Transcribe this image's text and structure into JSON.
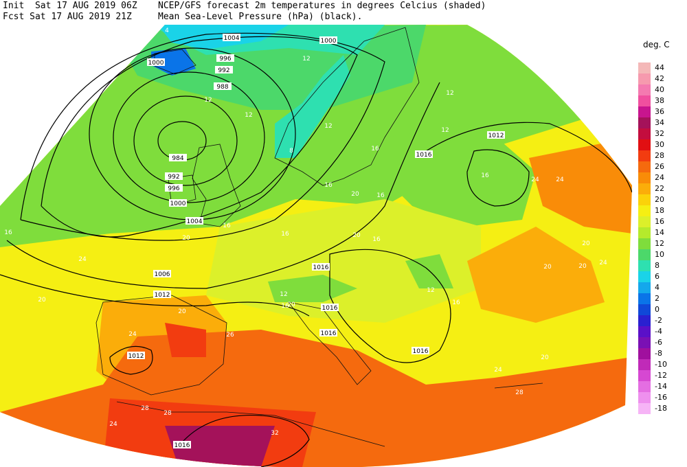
{
  "header": {
    "init_line": "Init  Sat 17 AUG 2019 06Z",
    "fcst_line": "Fcst Sat 17 AUG 2019 21Z",
    "desc_line1": "NCEP/GFS forecast 2m temperatures in degrees Celcius (shaded)",
    "desc_line2": "Mean Sea-Level Pressure (hPa) (black)."
  },
  "legend": {
    "title": "deg. C",
    "levels": [
      {
        "label": "44",
        "color": "#f4b8b8"
      },
      {
        "label": "42",
        "color": "#f69aae"
      },
      {
        "label": "40",
        "color": "#f47ab0"
      },
      {
        "label": "38",
        "color": "#f04f9f"
      },
      {
        "label": "36",
        "color": "#c8158e"
      },
      {
        "label": "34",
        "color": "#a4125a"
      },
      {
        "label": "32",
        "color": "#c30d3e"
      },
      {
        "label": "30",
        "color": "#e10f12"
      },
      {
        "label": "28",
        "color": "#f23c10"
      },
      {
        "label": "26",
        "color": "#f56a0e"
      },
      {
        "label": "24",
        "color": "#f98c08"
      },
      {
        "label": "22",
        "color": "#fbad0a"
      },
      {
        "label": "20",
        "color": "#fbd20a"
      },
      {
        "label": "18",
        "color": "#f5ef13"
      },
      {
        "label": "16",
        "color": "#dcf02a"
      },
      {
        "label": "14",
        "color": "#b5ea2c"
      },
      {
        "label": "12",
        "color": "#7fdd3c"
      },
      {
        "label": "10",
        "color": "#4cd86a"
      },
      {
        "label": "8",
        "color": "#2ee0b0"
      },
      {
        "label": "6",
        "color": "#1ad3e8"
      },
      {
        "label": "4",
        "color": "#14a8ec"
      },
      {
        "label": "2",
        "color": "#0a74e8"
      },
      {
        "label": "0",
        "color": "#1048d8"
      },
      {
        "label": "-2",
        "color": "#2a20d0"
      },
      {
        "label": "-4",
        "color": "#5a10c8"
      },
      {
        "label": "-6",
        "color": "#7a10b4"
      },
      {
        "label": "-8",
        "color": "#a0109e"
      },
      {
        "label": "-10",
        "color": "#c02ab8"
      },
      {
        "label": "-12",
        "color": "#d648d2"
      },
      {
        "label": "-14",
        "color": "#e46ee2"
      },
      {
        "label": "-16",
        "color": "#ee90ee"
      },
      {
        "label": "-18",
        "color": "#f6b4f6"
      }
    ]
  },
  "isobar_labels": [
    "1004",
    "1000",
    "996",
    "992",
    "988",
    "984",
    "1000",
    "992",
    "996",
    "1000",
    "1004",
    "1006",
    "1012",
    "1012",
    "1016",
    "1016",
    "1016",
    "1016",
    "1016",
    "1012",
    "1016"
  ],
  "temperature_labels": [
    "4",
    "12",
    "12",
    "12",
    "8",
    "12",
    "16",
    "12",
    "12",
    "16",
    "16",
    "20",
    "16",
    "16",
    "20",
    "16",
    "16",
    "20",
    "12",
    "16",
    "12",
    "16",
    "20",
    "24",
    "24",
    "20",
    "24",
    "20",
    "20",
    "28",
    "24",
    "20",
    "26",
    "28",
    "32",
    "24",
    "28",
    "20",
    "24",
    "16",
    "20",
    "24"
  ]
}
